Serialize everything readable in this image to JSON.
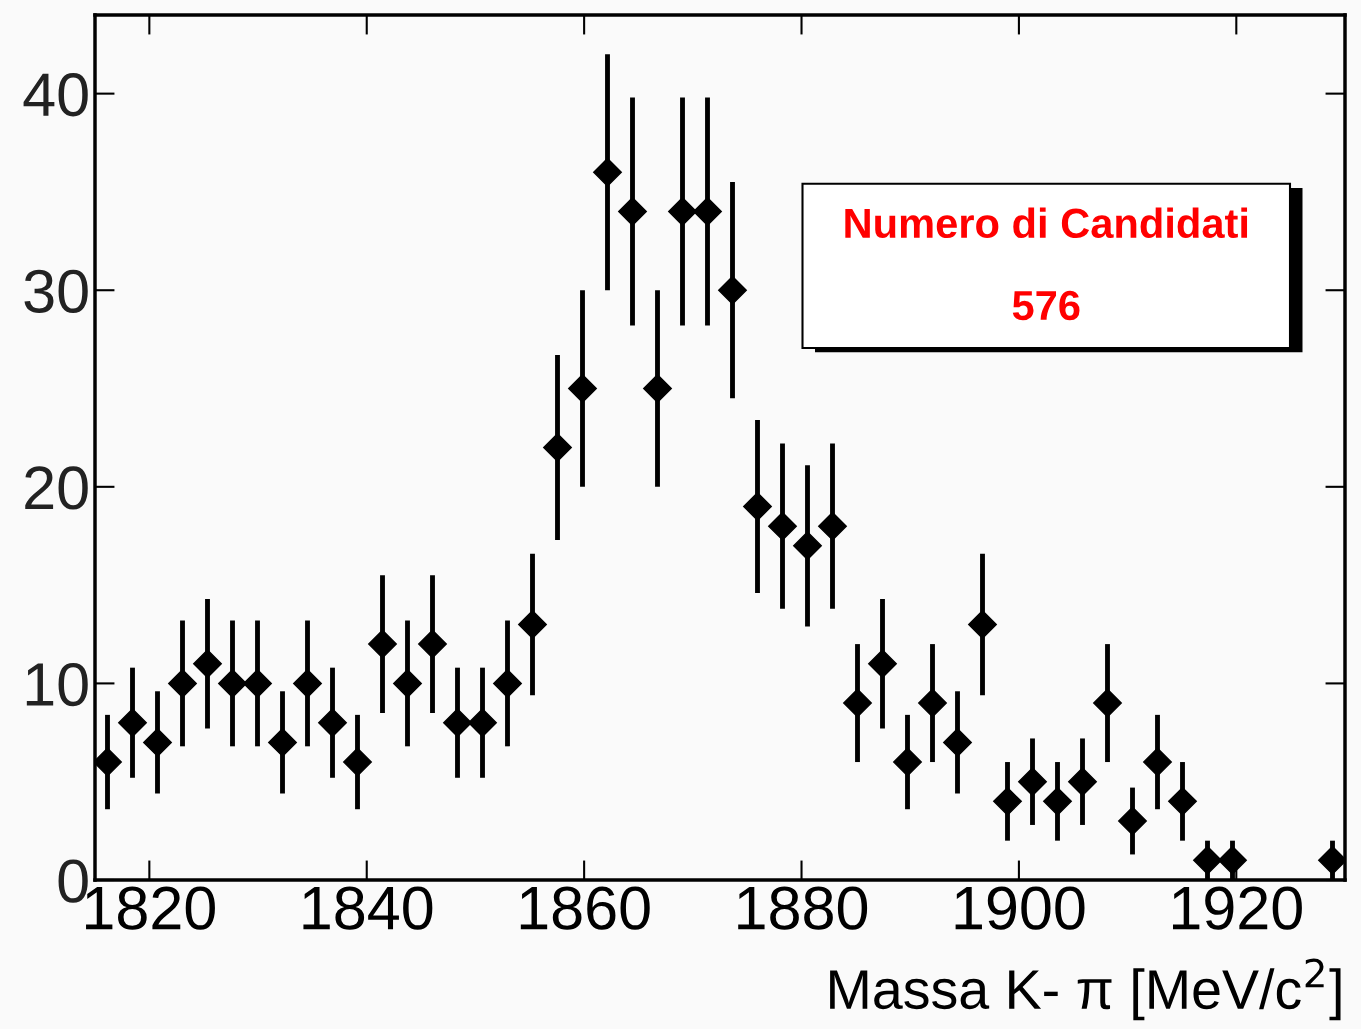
{
  "chart_data": {
    "type": "scatter",
    "xlabel": "Massa K- π [MeV/c$^{2}$]",
    "x": [
      1816.15,
      1818.45,
      1820.75,
      1823.05,
      1825.35,
      1827.65,
      1829.95,
      1832.25,
      1834.55,
      1836.85,
      1839.15,
      1841.45,
      1843.75,
      1846.05,
      1848.35,
      1850.65,
      1852.95,
      1855.25,
      1857.55,
      1859.85,
      1862.15,
      1864.45,
      1866.75,
      1869.05,
      1871.35,
      1873.65,
      1875.95,
      1878.25,
      1880.55,
      1882.85,
      1885.15,
      1887.45,
      1889.75,
      1892.05,
      1894.35,
      1896.65,
      1898.95,
      1901.25,
      1903.55,
      1905.85,
      1908.15,
      1910.45,
      1912.75,
      1915.05,
      1917.35,
      1919.65,
      1921.95,
      1924.25,
      1926.55,
      1928.85
    ],
    "series": [
      {
        "color": "#000000",
        "values": [
          6,
          8,
          7,
          10,
          11,
          10,
          10,
          7,
          10,
          8,
          6,
          12,
          10,
          12,
          8,
          8,
          10,
          13,
          22,
          25,
          36,
          34,
          25,
          34,
          34,
          30,
          19,
          18,
          17,
          18,
          9,
          11,
          6,
          9,
          7,
          13,
          4,
          5,
          4,
          5,
          9,
          3,
          6,
          4,
          1,
          1,
          null,
          null,
          null,
          1
        ],
        "errors": [
          2.4,
          2.8,
          2.6,
          3.2,
          3.3,
          3.2,
          3.2,
          2.6,
          3.2,
          2.8,
          2.4,
          3.5,
          3.2,
          3.5,
          2.8,
          2.8,
          3.2,
          3.6,
          4.7,
          5,
          6,
          5.8,
          5,
          5.8,
          5.8,
          5.5,
          4.4,
          4.2,
          4.1,
          4.2,
          3,
          3.3,
          2.4,
          3,
          2.6,
          3.6,
          2,
          2.2,
          2,
          2.2,
          3,
          1.7,
          2.4,
          2,
          1,
          1,
          null,
          null,
          null,
          1
        ]
      }
    ],
    "marker": "diamond",
    "xlim": [
      1815,
      1930
    ],
    "xticks": [
      1820,
      1840,
      1860,
      1880,
      1900,
      1920
    ],
    "ylim": [
      0,
      44
    ],
    "yticks": [
      0,
      10,
      20,
      30,
      40
    ],
    "grid": false,
    "legend": false,
    "annotations": [
      "Numero di Candidati",
      "576"
    ]
  }
}
